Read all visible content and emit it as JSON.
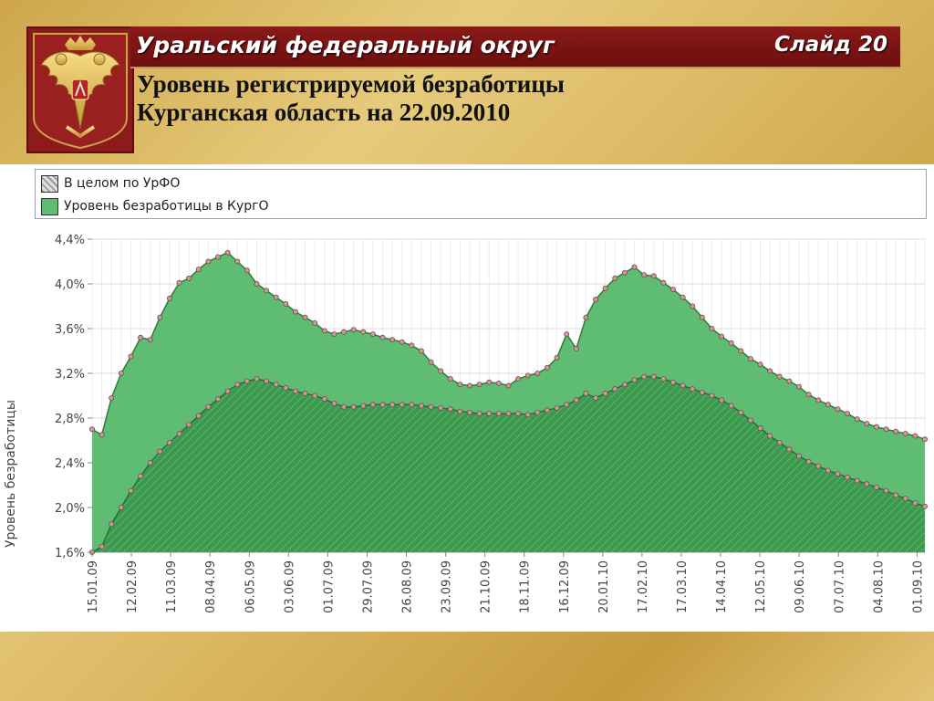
{
  "header": {
    "title": "Уральский федеральный округ",
    "slide_label": "Слайд 20",
    "subtitle_line1": "Уровень регистрируемой безработицы",
    "subtitle_line2": "Курганская область на 22.09.2010"
  },
  "colors": {
    "regional": "#5fbd73",
    "federal": "#3b9a4e",
    "marker": "#c89a9a",
    "title_bar": "#7a1212",
    "emblem_bg": "#8e1b1b"
  },
  "chart_data": {
    "type": "area",
    "ylabel": "Уровень безработицы",
    "ylim": [
      1.6,
      4.4
    ],
    "y_ticks": [
      "1,6%",
      "2,0%",
      "2,4%",
      "2,8%",
      "3,2%",
      "3,6%",
      "4,0%",
      "4,4%"
    ],
    "x_ticks": [
      "15.01.09",
      "12.02.09",
      "11.03.09",
      "08.04.09",
      "06.05.09",
      "03.06.09",
      "01.07.09",
      "29.07.09",
      "26.08.09",
      "23.09.09",
      "21.10.09",
      "18.11.09",
      "16.12.09",
      "20.01.10",
      "17.02.10",
      "17.03.10",
      "14.04.10",
      "12.05.10",
      "09.06.10",
      "07.07.10",
      "04.08.10",
      "01.09.10"
    ],
    "grid": true,
    "legend_position": "top",
    "series": [
      {
        "name": "В целом по УрФО",
        "values": [
          1.6,
          1.65,
          1.85,
          2.0,
          2.15,
          2.28,
          2.4,
          2.5,
          2.58,
          2.66,
          2.74,
          2.82,
          2.9,
          2.97,
          3.04,
          3.1,
          3.13,
          3.15,
          3.13,
          3.1,
          3.07,
          3.04,
          3.02,
          3.0,
          2.97,
          2.93,
          2.9,
          2.9,
          2.91,
          2.92,
          2.92,
          2.92,
          2.92,
          2.92,
          2.91,
          2.9,
          2.89,
          2.88,
          2.86,
          2.85,
          2.84,
          2.84,
          2.84,
          2.84,
          2.84,
          2.83,
          2.85,
          2.87,
          2.89,
          2.92,
          2.96,
          3.02,
          2.98,
          3.02,
          3.06,
          3.1,
          3.14,
          3.17,
          3.17,
          3.15,
          3.12,
          3.09,
          3.06,
          3.03,
          3.0,
          2.96,
          2.91,
          2.85,
          2.78,
          2.71,
          2.64,
          2.58,
          2.52,
          2.46,
          2.41,
          2.37,
          2.33,
          2.3,
          2.27,
          2.24,
          2.21,
          2.18,
          2.15,
          2.11,
          2.08,
          2.04,
          2.01
        ]
      },
      {
        "name": "Уровень безработицы в КургО",
        "values": [
          2.7,
          2.65,
          2.98,
          3.2,
          3.35,
          3.52,
          3.5,
          3.7,
          3.87,
          4.01,
          4.05,
          4.13,
          4.2,
          4.24,
          4.28,
          4.2,
          4.12,
          4.0,
          3.94,
          3.88,
          3.82,
          3.75,
          3.7,
          3.65,
          3.58,
          3.55,
          3.57,
          3.59,
          3.57,
          3.55,
          3.52,
          3.5,
          3.48,
          3.45,
          3.4,
          3.3,
          3.22,
          3.15,
          3.1,
          3.09,
          3.1,
          3.12,
          3.11,
          3.09,
          3.15,
          3.18,
          3.2,
          3.25,
          3.34,
          3.55,
          3.42,
          3.7,
          3.86,
          3.96,
          4.05,
          4.1,
          4.15,
          4.08,
          4.07,
          4.01,
          3.95,
          3.88,
          3.8,
          3.7,
          3.6,
          3.53,
          3.47,
          3.4,
          3.33,
          3.28,
          3.22,
          3.17,
          3.13,
          3.08,
          3.01,
          2.96,
          2.92,
          2.88,
          2.84,
          2.79,
          2.75,
          2.72,
          2.7,
          2.68,
          2.66,
          2.64,
          2.61
        ]
      }
    ]
  }
}
